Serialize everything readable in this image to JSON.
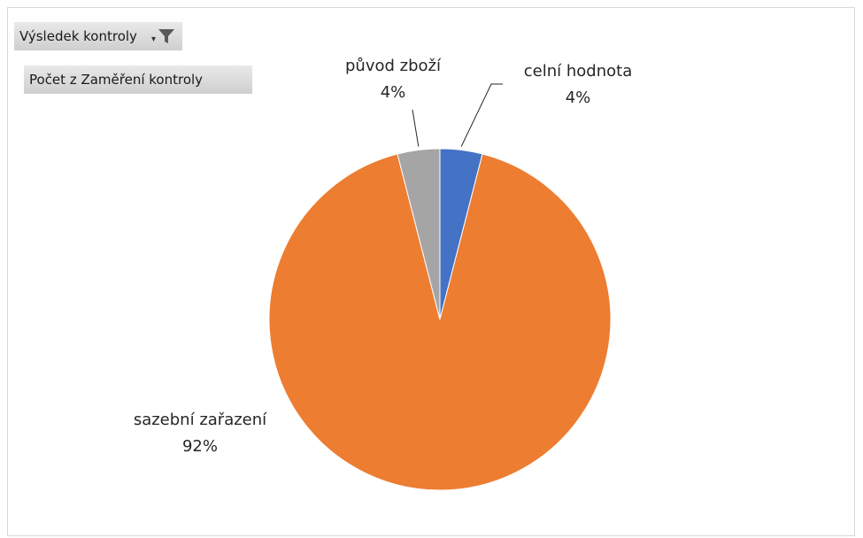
{
  "filter_button": {
    "label": "Výsledek kontroly",
    "icon": "filter-icon"
  },
  "value_field_button": {
    "label": "Počet z Zaměření kontroly"
  },
  "chart_data": {
    "type": "pie",
    "title": "",
    "slices": [
      {
        "name": "celní hodnota",
        "value": 4,
        "label": "4%",
        "color": "#4472C4"
      },
      {
        "name": "sazební zařazení",
        "value": 92,
        "label": "92%",
        "color": "#ED7D31"
      },
      {
        "name": "původ zboží",
        "value": 4,
        "label": "4%",
        "color": "#A5A5A5"
      }
    ],
    "legend": "none",
    "data_labels": "outside-with-leader-lines"
  }
}
